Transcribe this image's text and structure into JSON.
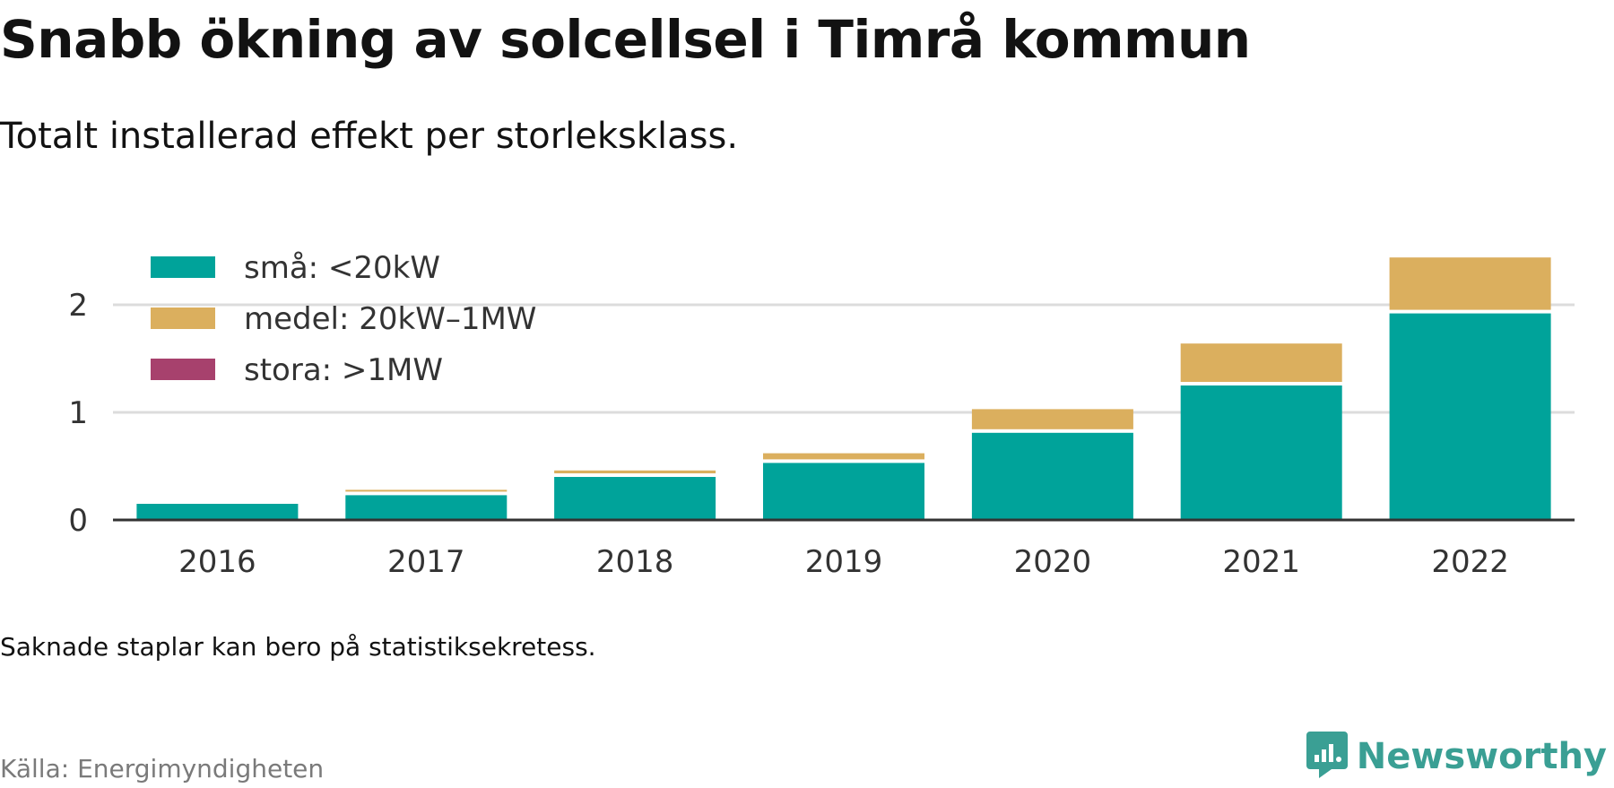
{
  "title": "Snabb ökning av solcellsel i Timrå kommun",
  "subtitle": "Totalt installerad effekt per storleksklass.",
  "note": "Saknade staplar kan bero på statistiksekretess.",
  "source": "Källa: Energimyndigheten",
  "brand": {
    "name": "Newsworthy",
    "color": "#3a9f94",
    "icon": "newsworthy-logo-icon"
  },
  "chart_data": {
    "type": "bar",
    "stacked": true,
    "categories": [
      "2016",
      "2017",
      "2018",
      "2019",
      "2020",
      "2021",
      "2022"
    ],
    "series": [
      {
        "name": "små: <20kW",
        "color": "#00a39a",
        "values": [
          0.15,
          0.23,
          0.4,
          0.53,
          0.81,
          1.25,
          1.92
        ]
      },
      {
        "name": "medel: 20kW–1MW",
        "color": "#dbaf5e",
        "values": [
          0.03,
          0.05,
          0.06,
          0.09,
          0.22,
          0.39,
          0.52
        ]
      },
      {
        "name": "stora: >1MW",
        "color": "#a7416d",
        "values": [
          0,
          0,
          0,
          0,
          0,
          0,
          0
        ]
      }
    ],
    "y_ticks": [
      "0",
      "1",
      "2"
    ],
    "ylim": [
      0,
      2.45
    ],
    "grid": true,
    "legend_position": "top-left"
  }
}
